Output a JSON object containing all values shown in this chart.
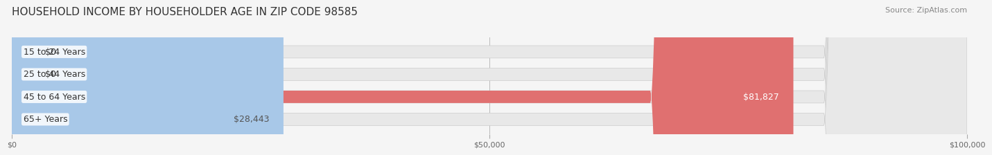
{
  "title": "HOUSEHOLD INCOME BY HOUSEHOLDER AGE IN ZIP CODE 98585",
  "source": "Source: ZipAtlas.com",
  "categories": [
    "15 to 24 Years",
    "25 to 44 Years",
    "45 to 64 Years",
    "65+ Years"
  ],
  "values": [
    0,
    0,
    81827,
    28443
  ],
  "bar_colors": [
    "#f08080",
    "#f5c28a",
    "#e07070",
    "#a8c8e8"
  ],
  "label_colors": [
    "#555555",
    "#555555",
    "#ffffff",
    "#555555"
  ],
  "value_labels": [
    "$0",
    "$0",
    "$81,827",
    "$28,443"
  ],
  "xlim": [
    0,
    100000
  ],
  "xticks": [
    0,
    50000,
    100000
  ],
  "xtick_labels": [
    "$0",
    "$50,000",
    "$100,000"
  ],
  "background_color": "#f5f5f5",
  "bar_bg_color": "#e8e8e8",
  "title_fontsize": 11,
  "source_fontsize": 8,
  "label_fontsize": 9,
  "value_fontsize": 9,
  "bar_height": 0.55
}
